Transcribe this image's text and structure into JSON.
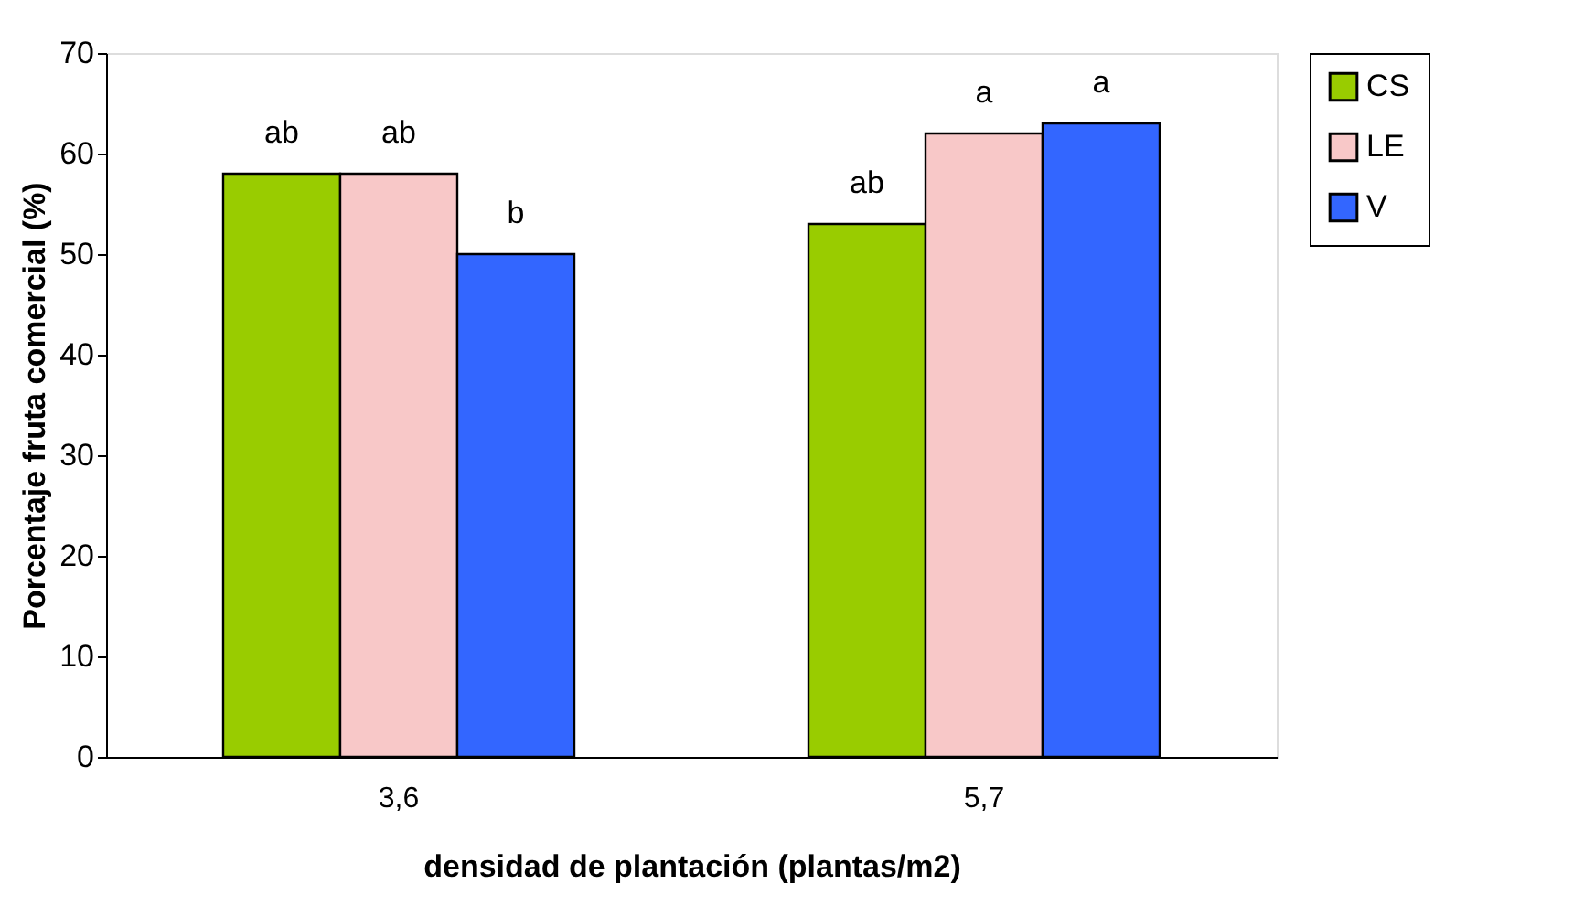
{
  "chart_data": {
    "type": "bar",
    "xlabel": "densidad de plantación (plantas/m2)",
    "ylabel": "Porcentaje  fruta comercial (%)",
    "categories": [
      "3,6",
      "5,7"
    ],
    "series": [
      {
        "name": "CS",
        "color": "#99cc00",
        "values": [
          58,
          53
        ],
        "value_labels": [
          "ab",
          "ab"
        ]
      },
      {
        "name": "LE",
        "color": "#f8c8c8",
        "values": [
          58,
          62
        ],
        "value_labels": [
          "ab",
          "a"
        ]
      },
      {
        "name": "V",
        "color": "#3366ff",
        "values": [
          50,
          63
        ],
        "value_labels": [
          "b",
          "a"
        ]
      }
    ],
    "ylim": [
      0,
      70
    ],
    "yticks": [
      0,
      10,
      20,
      30,
      40,
      50,
      60,
      70
    ],
    "grid": false,
    "legend": "right"
  }
}
